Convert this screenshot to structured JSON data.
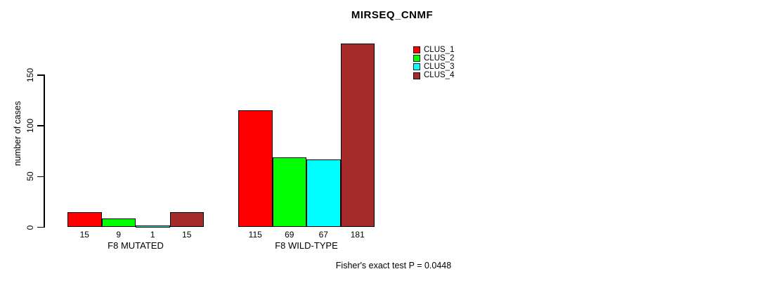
{
  "chart_data": {
    "type": "bar",
    "title": "MIRSEQ_CNMF",
    "ylabel": "number of cases",
    "xlabel": "",
    "categories": [
      "F8 MUTATED",
      "F8 WILD-TYPE"
    ],
    "series": [
      {
        "name": "CLUS_1",
        "color": "#FF0000",
        "values": [
          15,
          115
        ]
      },
      {
        "name": "CLUS_2",
        "color": "#00FF00",
        "values": [
          9,
          69
        ]
      },
      {
        "name": "CLUS_3",
        "color": "#00FFFF",
        "values": [
          1,
          67
        ]
      },
      {
        "name": "CLUS_4",
        "color": "#A52A2A",
        "values": [
          15,
          181
        ]
      }
    ],
    "bar_value_labels": [
      [
        15,
        9,
        1,
        15
      ],
      [
        115,
        69,
        67,
        181
      ]
    ],
    "yticks": [
      0,
      50,
      100,
      150
    ],
    "ylim": [
      0,
      181
    ],
    "grid": false,
    "legend_position": "top-right",
    "annotation": "Fisher's exact test P = 0.0448"
  },
  "colors": {
    "background": "#FFFFFF",
    "axis": "#000000",
    "text": "#000000",
    "bar_border": "#000000"
  }
}
